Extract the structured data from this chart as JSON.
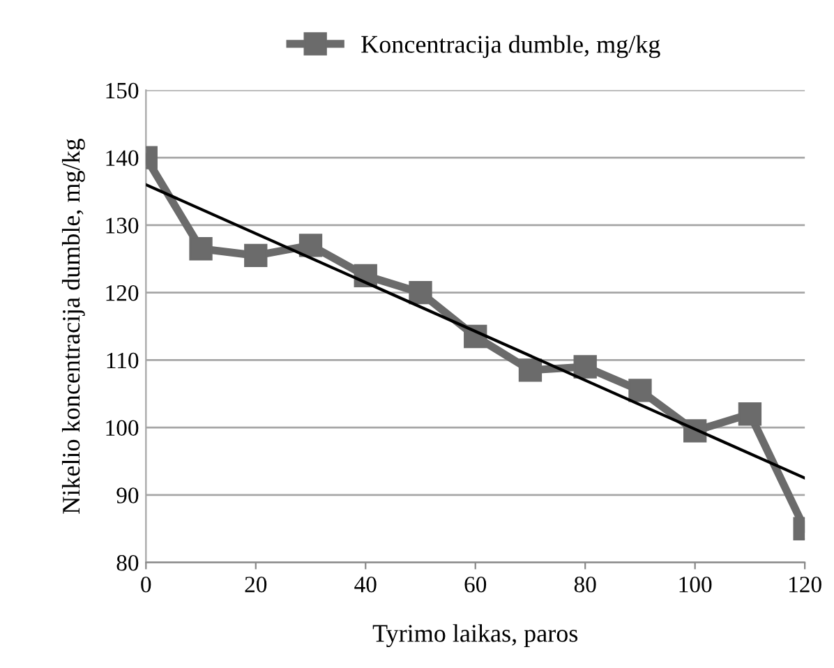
{
  "chart_data": {
    "type": "line",
    "xlabel": "Tyrimo laikas, paros",
    "ylabel": "Nikelio koncentracija dumble, mg/kg",
    "xlim": [
      0,
      120
    ],
    "xticks": [
      0,
      20,
      40,
      60,
      80,
      100,
      120
    ],
    "ylim": [
      80,
      150
    ],
    "yticks": [
      80,
      90,
      100,
      110,
      120,
      130,
      140,
      150
    ],
    "grid": "y",
    "legend": "top",
    "series": [
      {
        "name": "Koncentracija dumble, mg/kg",
        "color": "#6b6b6b",
        "marker": "square",
        "x": [
          0,
          10,
          20,
          30,
          40,
          50,
          60,
          70,
          80,
          90,
          100,
          110,
          120
        ],
        "values": [
          140,
          126.5,
          125.5,
          127,
          122.5,
          120,
          113.5,
          108.5,
          109,
          105.5,
          99.5,
          102,
          85
        ]
      },
      {
        "type": "line",
        "color": "#000000",
        "marker": "none",
        "x": [
          0,
          120
        ],
        "values": [
          136,
          92.5
        ]
      }
    ]
  }
}
